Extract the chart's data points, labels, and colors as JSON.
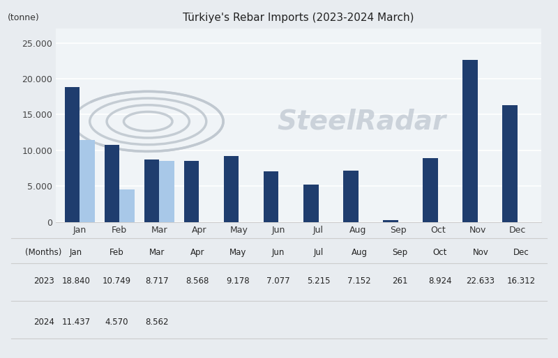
{
  "title": "Türkiye's Rebar Imports (2023-2024 March)",
  "ylabel": "(tonne)",
  "xlabel": "(Months)",
  "months": [
    "Jan",
    "Feb",
    "Mar",
    "Apr",
    "May",
    "Jun",
    "Jul",
    "Aug",
    "Sep",
    "Oct",
    "Nov",
    "Dec"
  ],
  "data_2023": [
    18840,
    10749,
    8717,
    8568,
    9178,
    7077,
    5215,
    7152,
    261,
    8924,
    22633,
    16312
  ],
  "data_2024": [
    11437,
    4570,
    8562,
    null,
    null,
    null,
    null,
    null,
    null,
    null,
    null,
    null
  ],
  "color_2023": "#1f3d6e",
  "color_2024": "#a8c8e8",
  "ylim": [
    0,
    27000
  ],
  "yticks": [
    0,
    5000,
    10000,
    15000,
    20000,
    25000
  ],
  "watermark_text": "SteelRadar",
  "background_color": "#e8ecf0",
  "chart_bg_color": "#f0f4f7",
  "bar_width": 0.38,
  "table_months_row": [
    "Jan",
    "Feb",
    "Mar",
    "Apr",
    "May",
    "Jun",
    "Jul",
    "Aug",
    "Sep",
    "Oct",
    "Nov",
    "Dec"
  ],
  "table_2023_row": [
    "18.840",
    "10.749",
    "8.717",
    "8.568",
    "9.178",
    "7.077",
    "5.215",
    "7.152",
    "261",
    "8.924",
    "22.633",
    "16.312"
  ],
  "table_2024_row": [
    "11.437",
    "4.570",
    "8.562",
    "",
    "",
    "",
    "",
    "",
    "",
    "",
    "",
    ""
  ]
}
